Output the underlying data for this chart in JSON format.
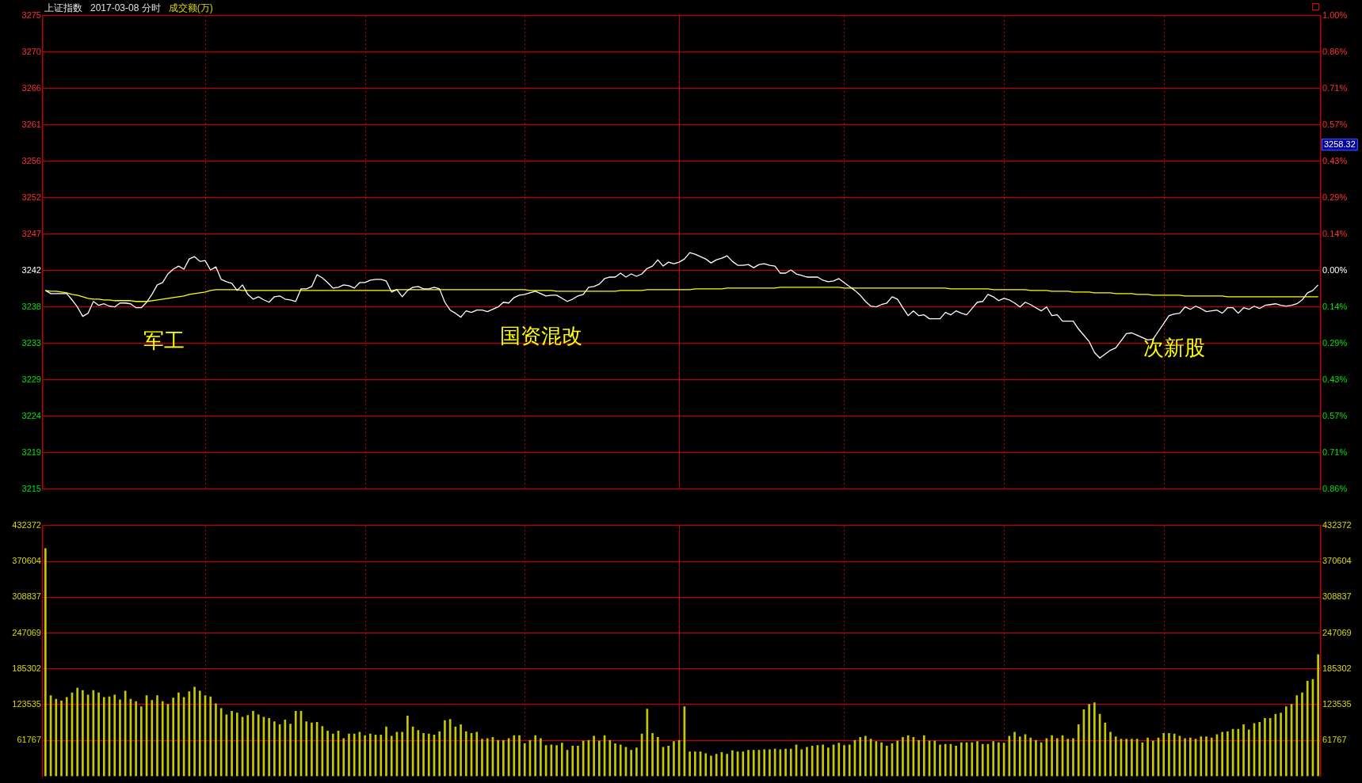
{
  "chart_data": [
    {
      "type": "line",
      "title": "上证指数",
      "subtitle": "2017-03-08 分时",
      "tick_labels": "y",
      "grid": true,
      "marker": "none",
      "line_style": "solid",
      "categories": [
        null,
        null,
        null,
        null,
        null,
        null,
        null,
        null,
        null,
        null,
        null,
        null,
        null,
        null,
        null,
        null,
        null,
        null,
        null,
        null,
        null,
        null,
        null,
        null,
        null,
        null,
        null,
        null,
        null,
        null,
        null,
        null,
        null,
        null,
        null,
        null,
        null,
        null,
        null,
        null,
        null,
        null,
        null,
        null,
        null,
        null,
        null,
        null,
        null,
        null,
        null,
        null,
        null,
        null,
        null,
        null,
        null,
        null,
        null,
        null,
        null,
        null,
        null,
        null,
        null,
        null,
        null,
        null,
        null,
        null,
        null,
        null,
        null,
        null,
        null,
        null,
        null,
        null,
        null,
        null,
        null,
        null,
        null,
        null,
        null,
        null,
        null,
        null,
        null,
        null,
        null,
        null,
        null,
        null,
        null,
        null,
        null,
        null,
        null,
        null,
        null,
        null,
        null,
        null,
        null,
        null,
        null,
        null,
        null,
        null,
        null,
        null,
        null,
        null,
        null,
        null,
        null,
        null,
        null,
        null,
        null,
        null,
        null,
        null,
        null,
        null,
        null,
        null,
        null,
        null,
        null,
        null,
        null,
        null,
        null,
        null,
        null,
        null,
        null,
        null,
        null,
        null,
        null,
        null,
        null,
        null,
        null,
        null,
        null,
        null,
        null,
        null,
        null,
        null,
        null,
        null,
        null,
        null,
        null,
        null,
        null,
        null,
        null,
        null,
        null,
        null,
        null,
        null,
        null,
        null,
        null,
        null,
        null,
        null,
        null,
        null,
        null,
        null,
        null,
        null,
        null,
        null,
        null,
        null,
        null,
        null,
        null,
        null,
        null,
        null,
        null,
        null,
        null,
        null,
        null,
        null,
        null,
        null,
        null,
        null,
        null,
        null,
        null,
        null,
        null,
        null,
        null,
        null,
        null,
        null,
        null,
        null,
        null,
        null,
        null,
        null,
        null,
        null,
        null,
        null,
        null,
        null,
        null,
        null,
        null,
        null,
        null,
        null,
        null,
        null,
        null,
        null,
        null,
        null,
        null,
        null,
        null,
        null,
        null,
        null
      ],
      "ylim": [
        3214.71,
        3274.93
      ],
      "yticks": [
        {
          "value": 3274.93,
          "label": "3275"
        },
        {
          "value": 3270.29,
          "label": "3270"
        },
        {
          "value": 3265.66,
          "label": "3266"
        },
        {
          "value": 3261.03,
          "label": "3261"
        },
        {
          "value": 3256.4,
          "label": "3256"
        },
        {
          "value": 3251.76,
          "label": "3252"
        },
        {
          "value": 3247.13,
          "label": "3247"
        },
        {
          "value": 3242.5,
          "label": "3242"
        },
        {
          "value": 3237.87,
          "label": "3238"
        },
        {
          "value": 3233.24,
          "label": "3233"
        },
        {
          "value": 3228.6,
          "label": "3229"
        },
        {
          "value": 3223.97,
          "label": "3224"
        },
        {
          "value": 3219.34,
          "label": "3219"
        },
        {
          "value": 3214.71,
          "label": "3215"
        }
      ],
      "y2lim": [
        -0.857,
        1.0
      ],
      "y2ticks": [
        {
          "value": 1.0,
          "label": "1.00%"
        },
        {
          "value": 0.857,
          "label": "0.86%"
        },
        {
          "value": 0.714,
          "label": "0.71%"
        },
        {
          "value": 0.571,
          "label": "0.57%"
        },
        {
          "value": 0.429,
          "label": "0.43%"
        },
        {
          "value": 0.286,
          "label": "0.29%"
        },
        {
          "value": 0.143,
          "label": "0.14%"
        },
        {
          "value": 0,
          "label": "0.00%"
        },
        {
          "value": -0.143,
          "label": "0.14%"
        },
        {
          "value": -0.286,
          "label": "0.29%"
        },
        {
          "value": -0.429,
          "label": "0.43%"
        },
        {
          "value": -0.571,
          "label": "0.57%"
        },
        {
          "value": -0.714,
          "label": "0.71%"
        },
        {
          "value": -0.857,
          "label": "0.86%"
        }
      ],
      "annotations": [
        "军工",
        "国资混改",
        "次新股",
        "3258.32",
        "成交额(万)"
      ],
      "series": [
        {
          "color": "#ffffff",
          "values": [
            3240.0,
            3239.6,
            3239.6,
            3239.6,
            3239.6,
            3238.8,
            3237.9,
            3236.7,
            3237.1,
            3238.6,
            3238.1,
            3238.3,
            3238.0,
            3237.9,
            3238.4,
            3238.4,
            3238.3,
            3237.8,
            3237.8,
            3238.5,
            3239.5,
            3240.7,
            3241.0,
            3242.1,
            3242.7,
            3243.1,
            3242.7,
            3244.0,
            3244.3,
            3243.7,
            3243.8,
            3242.6,
            3243.0,
            3241.4,
            3241.1,
            3240.9,
            3240.0,
            3240.7,
            3239.5,
            3238.9,
            3239.2,
            3238.8,
            3238.5,
            3239.2,
            3239.3,
            3238.9,
            3238.8,
            3238.6,
            3240.2,
            3240.2,
            3240.5,
            3242.0,
            3241.6,
            3241.0,
            3240.3,
            3240.4,
            3240.7,
            3240.6,
            3240.3,
            3241.0,
            3241.0,
            3241.3,
            3241.4,
            3241.4,
            3241.2,
            3239.8,
            3240.1,
            3239.2,
            3240.0,
            3240.4,
            3240.5,
            3240.2,
            3240.2,
            3240.4,
            3240.2,
            3238.5,
            3237.5,
            3237.1,
            3236.6,
            3237.4,
            3237.2,
            3237.5,
            3237.5,
            3237.3,
            3237.6,
            3237.9,
            3238.5,
            3238.4,
            3239.1,
            3239.4,
            3239.5,
            3239.7,
            3239.9,
            3239.6,
            3239.3,
            3239.4,
            3239.4,
            3239.0,
            3238.6,
            3238.9,
            3239.3,
            3239.5,
            3240.4,
            3240.5,
            3240.8,
            3241.5,
            3241.7,
            3241.7,
            3242.2,
            3241.7,
            3242.1,
            3241.8,
            3242.1,
            3242.8,
            3243.1,
            3243.9,
            3243.1,
            3243.6,
            3243.4,
            3243.6,
            3244.0,
            3244.8,
            3244.6,
            3244.3,
            3244.0,
            3243.5,
            3243.9,
            3244.1,
            3244.4,
            3243.7,
            3243.2,
            3243.2,
            3243.3,
            3242.9,
            3243.3,
            3243.4,
            3243.2,
            3243.1,
            3242.2,
            3242.2,
            3242.6,
            3242.1,
            3241.9,
            3241.7,
            3241.7,
            3241.7,
            3241.3,
            3241.1,
            3241.2,
            3241.5,
            3241.0,
            3240.5,
            3240.0,
            3239.4,
            3238.6,
            3238.0,
            3237.9,
            3238.2,
            3238.4,
            3239.2,
            3238.9,
            3237.8,
            3236.8,
            3237.4,
            3236.8,
            3236.9,
            3236.4,
            3236.4,
            3236.4,
            3237.2,
            3236.9,
            3237.4,
            3237.1,
            3236.9,
            3237.7,
            3238.5,
            3238.6,
            3239.5,
            3239.2,
            3238.7,
            3239.0,
            3238.8,
            3238.4,
            3237.9,
            3238.5,
            3238.2,
            3237.8,
            3237.4,
            3237.9,
            3236.8,
            3236.9,
            3236.1,
            3236.1,
            3236.1,
            3235.1,
            3234.3,
            3233.5,
            3232.1,
            3231.4,
            3231.9,
            3232.4,
            3232.7,
            3233.6,
            3234.5,
            3234.6,
            3234.3,
            3234.0,
            3233.7,
            3233.8,
            3234.8,
            3235.8,
            3236.8,
            3237.0,
            3237.1,
            3237.9,
            3237.6,
            3238.0,
            3237.7,
            3237.3,
            3237.4,
            3237.5,
            3237.1,
            3237.8,
            3237.8,
            3237.1,
            3237.8,
            3237.6,
            3238.0,
            3237.7,
            3238.1,
            3238.2,
            3238.3,
            3238.1,
            3238.0,
            3238.1,
            3238.3,
            3238.8,
            3239.7,
            3240.0,
            3240.7
          ]
        },
        {
          "color": "#ffff00",
          "values": [
            3240.0,
            3239.9,
            3239.9,
            3239.8,
            3239.7,
            3239.5,
            3239.4,
            3239.2,
            3239.0,
            3238.9,
            3238.9,
            3238.8,
            3238.8,
            3238.7,
            3238.7,
            3238.7,
            3238.7,
            3238.6,
            3238.6,
            3238.6,
            3238.7,
            3238.8,
            3238.9,
            3239.0,
            3239.1,
            3239.2,
            3239.3,
            3239.5,
            3239.6,
            3239.7,
            3239.8,
            3240.0,
            3240.1,
            3240.1,
            3240.1,
            3240.1,
            3240.1,
            3240.0,
            3240.0,
            3240.0,
            3240.0,
            3240.0,
            3240.0,
            3240.0,
            3240.0,
            3240.0,
            3240.0,
            3240.0,
            3240.0,
            3240.0,
            3240.0,
            3240.0,
            3240.0,
            3240.0,
            3240.0,
            3240.0,
            3240.0,
            3240.0,
            3240.0,
            3240.0,
            3240.0,
            3240.0,
            3240.0,
            3240.0,
            3240.0,
            3240.0,
            3240.1,
            3240.1,
            3240.1,
            3240.1,
            3240.1,
            3240.1,
            3240.1,
            3240.1,
            3240.1,
            3240.1,
            3240.1,
            3240.1,
            3240.1,
            3240.1,
            3240.1,
            3240.1,
            3240.1,
            3240.1,
            3240.1,
            3240.1,
            3240.1,
            3240.1,
            3240.1,
            3240.1,
            3240.1,
            3240.0,
            3240.0,
            3240.0,
            3240.0,
            3240.0,
            3239.9,
            3239.9,
            3239.9,
            3239.9,
            3239.9,
            3239.9,
            3239.9,
            3239.9,
            3239.9,
            3239.9,
            3239.9,
            3239.9,
            3240.0,
            3240.0,
            3240.0,
            3240.0,
            3240.0,
            3240.1,
            3240.1,
            3240.1,
            3240.1,
            3240.1,
            3240.1,
            3240.1,
            3240.1,
            3240.1,
            3240.2,
            3240.2,
            3240.2,
            3240.2,
            3240.2,
            3240.2,
            3240.3,
            3240.3,
            3240.3,
            3240.3,
            3240.3,
            3240.3,
            3240.3,
            3240.3,
            3240.3,
            3240.3,
            3240.4,
            3240.4,
            3240.4,
            3240.4,
            3240.4,
            3240.4,
            3240.4,
            3240.4,
            3240.4,
            3240.4,
            3240.4,
            3240.4,
            3240.3,
            3240.3,
            3240.3,
            3240.3,
            3240.3,
            3240.3,
            3240.3,
            3240.3,
            3240.3,
            3240.3,
            3240.3,
            3240.3,
            3240.3,
            3240.3,
            3240.3,
            3240.3,
            3240.3,
            3240.3,
            3240.3,
            3240.3,
            3240.2,
            3240.2,
            3240.2,
            3240.2,
            3240.2,
            3240.2,
            3240.2,
            3240.2,
            3240.1,
            3240.1,
            3240.1,
            3240.1,
            3240.1,
            3240.1,
            3240.1,
            3240.0,
            3240.0,
            3240.0,
            3240.0,
            3239.9,
            3239.9,
            3239.9,
            3239.9,
            3239.8,
            3239.8,
            3239.8,
            3239.8,
            3239.7,
            3239.7,
            3239.7,
            3239.7,
            3239.6,
            3239.6,
            3239.6,
            3239.6,
            3239.5,
            3239.5,
            3239.5,
            3239.4,
            3239.4,
            3239.4,
            3239.4,
            3239.4,
            3239.4,
            3239.3,
            3239.3,
            3239.3,
            3239.3,
            3239.3,
            3239.3,
            3239.3,
            3239.3,
            3239.2,
            3239.2,
            3239.2,
            3239.2,
            3239.2,
            3239.2,
            3239.2,
            3239.2,
            3239.2,
            3239.2,
            3239.2,
            3239.2,
            3239.2,
            3239.2,
            3239.2,
            3239.2,
            3239.2,
            3239.2
          ]
        }
      ]
    },
    {
      "type": "bar",
      "tick_labels": "y",
      "grid": true,
      "color": "#c8c800",
      "categories": [
        null,
        null,
        null,
        null,
        null,
        null,
        null,
        null,
        null,
        null,
        null,
        null,
        null,
        null,
        null,
        null,
        null,
        null,
        null,
        null,
        null,
        null,
        null,
        null,
        null,
        null,
        null,
        null,
        null,
        null,
        null,
        null,
        null,
        null,
        null,
        null,
        null,
        null,
        null,
        null,
        null,
        null,
        null,
        null,
        null,
        null,
        null,
        null,
        null,
        null,
        null,
        null,
        null,
        null,
        null,
        null,
        null,
        null,
        null,
        null,
        null,
        null,
        null,
        null,
        null,
        null,
        null,
        null,
        null,
        null,
        null,
        null,
        null,
        null,
        null,
        null,
        null,
        null,
        null,
        null,
        null,
        null,
        null,
        null,
        null,
        null,
        null,
        null,
        null,
        null,
        null,
        null,
        null,
        null,
        null,
        null,
        null,
        null,
        null,
        null,
        null,
        null,
        null,
        null,
        null,
        null,
        null,
        null,
        null,
        null,
        null,
        null,
        null,
        null,
        null,
        null,
        null,
        null,
        null,
        null,
        null,
        null,
        null,
        null,
        null,
        null,
        null,
        null,
        null,
        null,
        null,
        null,
        null,
        null,
        null,
        null,
        null,
        null,
        null,
        null,
        null,
        null,
        null,
        null,
        null,
        null,
        null,
        null,
        null,
        null,
        null,
        null,
        null,
        null,
        null,
        null,
        null,
        null,
        null,
        null,
        null,
        null,
        null,
        null,
        null,
        null,
        null,
        null,
        null,
        null,
        null,
        null,
        null,
        null,
        null,
        null,
        null,
        null,
        null,
        null,
        null,
        null,
        null,
        null,
        null,
        null,
        null,
        null,
        null,
        null,
        null,
        null,
        null,
        null,
        null,
        null,
        null,
        null,
        null,
        null,
        null,
        null,
        null,
        null,
        null,
        null,
        null,
        null,
        null,
        null,
        null,
        null,
        null,
        null,
        null,
        null,
        null,
        null,
        null,
        null,
        null,
        null,
        null,
        null,
        null,
        null,
        null,
        null,
        null,
        null,
        null,
        null,
        null,
        null,
        null,
        null,
        null,
        null,
        null,
        null
      ],
      "ylim": [
        0,
        432372
      ],
      "yticks": [
        61767,
        123535,
        185302,
        247069,
        308837,
        370604,
        432372
      ],
      "y2lim": [
        0,
        432372
      ],
      "y2ticks": [
        61767,
        123535,
        185302,
        247069,
        308837,
        370604,
        432372
      ],
      "values": [
        393000,
        139000,
        133000,
        130000,
        136000,
        144000,
        152000,
        148000,
        140000,
        148000,
        144000,
        136000,
        137000,
        140000,
        132000,
        147000,
        133000,
        129000,
        120000,
        139000,
        131000,
        139000,
        129000,
        124000,
        135000,
        144000,
        136000,
        146000,
        154000,
        147000,
        139000,
        137000,
        125000,
        117000,
        106000,
        112000,
        109000,
        102000,
        105000,
        112000,
        106000,
        102000,
        100000,
        94000,
        89000,
        97000,
        90000,
        112000,
        112000,
        94000,
        92000,
        93000,
        86000,
        78000,
        73000,
        78000,
        65000,
        73000,
        73000,
        76000,
        70000,
        73000,
        71000,
        71000,
        85000,
        69000,
        76000,
        76000,
        104000,
        85000,
        79000,
        74000,
        73000,
        71000,
        77000,
        96000,
        98000,
        85000,
        89000,
        77000,
        74000,
        76000,
        64000,
        65000,
        67000,
        62000,
        62000,
        65000,
        70000,
        70000,
        56000,
        62000,
        70000,
        65000,
        53000,
        54000,
        53000,
        57000,
        45000,
        52000,
        52000,
        61000,
        62000,
        69000,
        61000,
        70000,
        62000,
        56000,
        54000,
        50000,
        45000,
        49000,
        73000,
        116000,
        74000,
        67000,
        50000,
        52000,
        60000,
        62000,
        120000,
        42000,
        42000,
        42000,
        39000,
        35000,
        38000,
        41000,
        38000,
        44000,
        42000,
        42000,
        45000,
        45000,
        45000,
        46000,
        46000,
        47000,
        46000,
        47000,
        47000,
        54000,
        46000,
        50000,
        52000,
        53000,
        54000,
        49000,
        54000,
        57000,
        53000,
        54000,
        62000,
        67000,
        69000,
        64000,
        60000,
        58000,
        52000,
        56000,
        61000,
        67000,
        70000,
        67000,
        62000,
        70000,
        61000,
        61000,
        54000,
        55000,
        55000,
        52000,
        58000,
        58000,
        58000,
        60000,
        55000,
        55000,
        60000,
        58000,
        57000,
        69000,
        76000,
        68000,
        72000,
        66000,
        62000,
        58000,
        65000,
        70000,
        65000,
        70000,
        64000,
        65000,
        89000,
        115000,
        124000,
        127000,
        107000,
        92000,
        76000,
        68000,
        64000,
        64000,
        64000,
        64000,
        58000,
        66000,
        61000,
        66000,
        74000,
        74000,
        73000,
        69000,
        65000,
        66000,
        64000,
        68000,
        68000,
        66000,
        72000,
        76000,
        77000,
        81000,
        81000,
        89000,
        80000,
        91000,
        93000,
        100000,
        100000,
        107000,
        109000,
        120000,
        124000,
        139000,
        144000,
        164000,
        167000,
        210000
      ]
    }
  ]
}
